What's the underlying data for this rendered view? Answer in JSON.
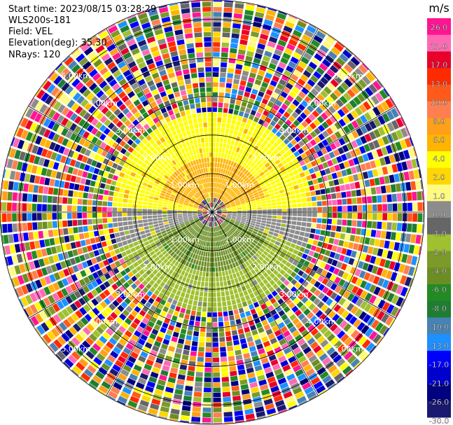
{
  "header": {
    "start_time": "Start time: 2023/08/15 03:28:29",
    "instrument": "WLS200s-181",
    "field": "Field: VEL",
    "elevation": "Elevation(deg): 35.30",
    "nrays": "NRays: 120"
  },
  "chart_data": {
    "type": "heatmap",
    "projection": "polar PPI",
    "field": "VEL",
    "units": "m/s",
    "n_rays": 120,
    "elevation_deg": 35.3,
    "range_rings_km": [
      1.0,
      2.0,
      3.0,
      4.0,
      5.0
    ],
    "range_ring_labels": [
      "1.00km",
      "2.00km",
      "3.00km",
      "4.00km",
      "5.00km"
    ],
    "max_range_km": 5.5,
    "spoke_angles_deg": [
      0,
      30,
      60,
      90,
      120,
      150,
      180,
      210,
      240,
      270,
      300,
      330
    ],
    "grid": true,
    "colorbar": {
      "label": "m/s",
      "vmin": -30,
      "vmax": 30,
      "tick_labels": [
        "26.0",
        "21.0",
        "17.0",
        "13.0",
        "10.0",
        "8.0",
        "6.0",
        "4.0",
        "2.0",
        "1.0",
        "0.0",
        "-1.0",
        "-2.0",
        "-4.0",
        "-6.0",
        "-8.0",
        "-10.0",
        "-13.0",
        "-17.0",
        "-21.0",
        "-26.0",
        "-30.0"
      ],
      "colors": [
        "#ff1493",
        "#ff69b4",
        "#e8002a",
        "#ff2a00",
        "#ff5a1a",
        "#ff7f50",
        "#ff9f1a",
        "#ffb400",
        "#ffff00",
        "#ffd700",
        "#fffa80",
        "#8c8c8c",
        "#666666",
        "#a0c030",
        "#7b9a2a",
        "#6b8e23",
        "#228b22",
        "#1e7d32",
        "#4682b4",
        "#1e90ff",
        "#0000ff",
        "#0000cd",
        "#000080",
        "#191970"
      ]
    },
    "near_field_velocity_by_sector": [
      {
        "azimuth_range_deg": [
          -75,
          75
        ],
        "range_km": [
          0.4,
          1.4
        ],
        "velocity_ms": 6.0
      },
      {
        "azimuth_range_deg": [
          -88,
          88
        ],
        "range_km": [
          0.4,
          2.6
        ],
        "velocity_ms": 4.0
      },
      {
        "azimuth_range_deg": [
          88,
          110
        ],
        "range_km": [
          0.4,
          2.6
        ],
        "velocity_ms": 0.0
      },
      {
        "azimuth_range_deg": [
          110,
          250
        ],
        "range_km": [
          0.4,
          1.6
        ],
        "velocity_ms": -6.0
      },
      {
        "azimuth_range_deg": [
          110,
          250
        ],
        "range_km": [
          1.6,
          2.6
        ],
        "velocity_ms": -2.0
      },
      {
        "azimuth_range_deg": [
          250,
          272
        ],
        "range_km": [
          0.4,
          2.6
        ],
        "velocity_ms": 0.0
      }
    ],
    "far_field": "noise (mixed colors) beyond 2.6 km"
  }
}
